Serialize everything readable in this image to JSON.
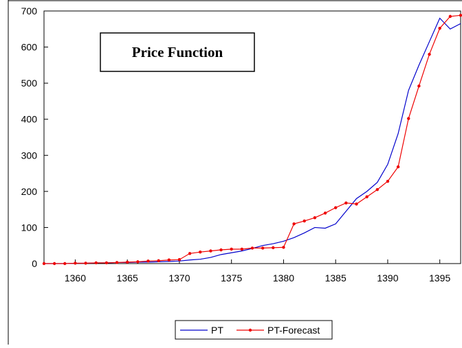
{
  "chart_data": {
    "type": "line",
    "title": "Price Function",
    "x": [
      1357,
      1358,
      1359,
      1360,
      1361,
      1362,
      1363,
      1364,
      1365,
      1366,
      1367,
      1368,
      1369,
      1370,
      1371,
      1372,
      1373,
      1374,
      1375,
      1376,
      1377,
      1378,
      1379,
      1380,
      1381,
      1382,
      1383,
      1384,
      1385,
      1386,
      1387,
      1388,
      1389,
      1390,
      1391,
      1392,
      1393,
      1394,
      1395,
      1396,
      1397
    ],
    "series": [
      {
        "name": "PT",
        "color": "#0000cc",
        "marker": false,
        "values": [
          0,
          0,
          0,
          1,
          1,
          2,
          2,
          3,
          3,
          4,
          4,
          5,
          6,
          7,
          10,
          12,
          17,
          25,
          30,
          35,
          42,
          50,
          55,
          62,
          72,
          85,
          100,
          98,
          110,
          145,
          180,
          200,
          225,
          275,
          360,
          480,
          550,
          615,
          680,
          650,
          665
        ]
      },
      {
        "name": "PT-Forecast",
        "color": "#ee0000",
        "marker": true,
        "values": [
          0,
          0,
          0,
          1,
          1,
          2,
          2,
          3,
          4,
          5,
          7,
          8,
          10,
          11,
          28,
          32,
          35,
          38,
          40,
          40,
          43,
          43,
          44,
          45,
          110,
          118,
          127,
          140,
          155,
          168,
          165,
          185,
          205,
          228,
          268,
          402,
          492,
          580,
          652,
          685,
          688
        ]
      }
    ],
    "xlim": [
      1357,
      1397
    ],
    "xticks": [
      1360,
      1365,
      1370,
      1375,
      1380,
      1385,
      1390,
      1395
    ],
    "ylim": [
      0,
      700
    ],
    "yticks": [
      0,
      100,
      200,
      300,
      400,
      500,
      600,
      700
    ],
    "legend": "bottom"
  }
}
